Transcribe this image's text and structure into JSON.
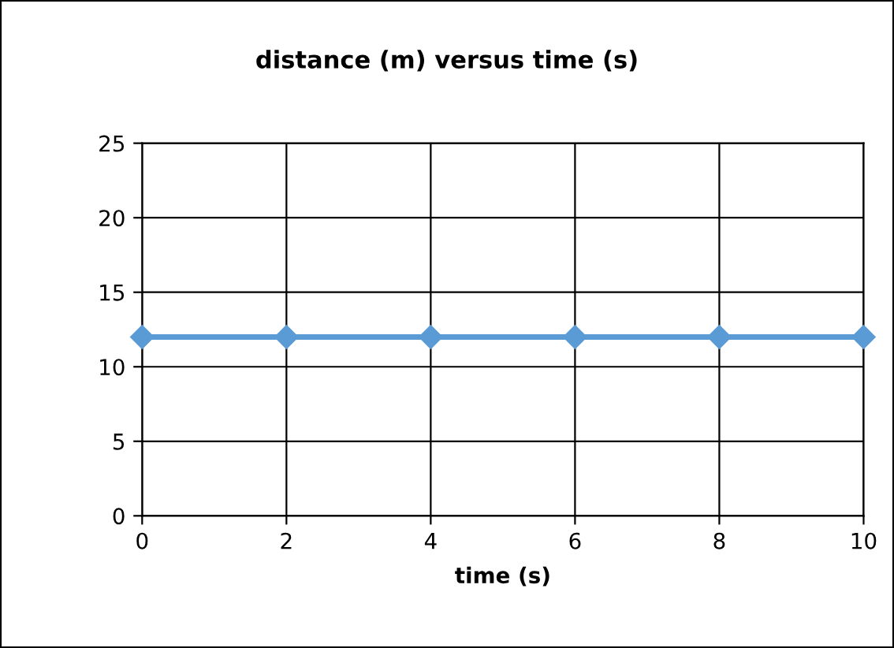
{
  "chart_data": {
    "type": "line",
    "title": "distance (m) versus time (s)",
    "xlabel": "time (s)",
    "x": [
      0,
      2,
      4,
      6,
      8,
      10
    ],
    "series": [
      {
        "color": "#5b9bd5",
        "values": [
          12,
          12,
          12,
          12,
          12,
          12
        ]
      }
    ],
    "xlim": [
      0,
      10
    ],
    "xticks": [
      0,
      2,
      4,
      6,
      8,
      10
    ],
    "ylim": [
      0,
      25
    ],
    "yticks": [
      0,
      5,
      10,
      15,
      20,
      25
    ],
    "grid": true,
    "legend": false,
    "marker": "diamond",
    "line_style": "solid"
  }
}
